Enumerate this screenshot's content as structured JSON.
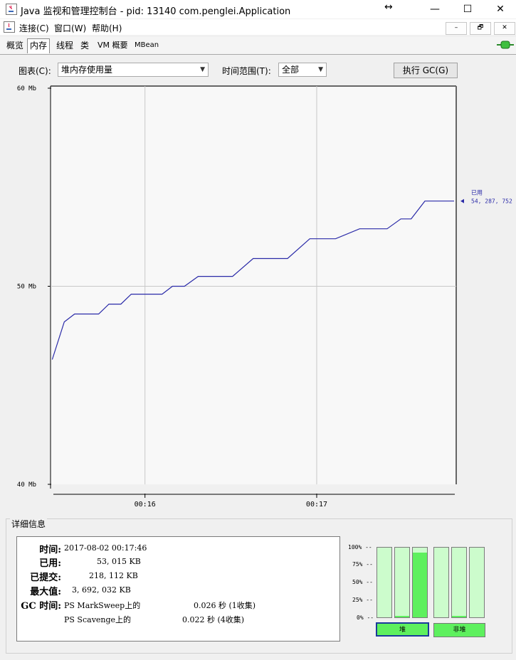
{
  "window": {
    "title": "Java 监视和管理控制台 - pid: 13140 com.penglei.Application",
    "minimize": "—",
    "maximize": "☐",
    "close": "✕",
    "resize_hint": "↔"
  },
  "menu": {
    "items": [
      "连接(C)",
      "窗口(W)",
      "帮助(H)"
    ],
    "mdi": [
      "–",
      "🗗",
      "✕"
    ]
  },
  "tabs": [
    "概览",
    "内存",
    "线程",
    "类",
    "VM 概要",
    "MBean"
  ],
  "active_tab": "内存",
  "controls": {
    "chart_label": "图表(C):",
    "chart_value": "堆内存使用量",
    "range_label": "时间范围(T):",
    "range_value": "全部",
    "gc_button": "执行 GC(G)"
  },
  "chart_data": {
    "type": "line",
    "ylabel": "",
    "xlabel": "",
    "y_ticks": [
      "60 Mb",
      "50 Mb",
      "40 Mb"
    ],
    "ylim": [
      40,
      60
    ],
    "x_ticks": [
      "00:16",
      "00:17"
    ],
    "x_tick_minutes": [
      16,
      17
    ],
    "xlim_minutes": [
      15.45,
      17.8
    ],
    "series": [
      {
        "name": "已用",
        "x_minutes": [
          15.46,
          15.53,
          15.59,
          15.73,
          15.79,
          15.86,
          15.92,
          16.1,
          16.16,
          16.23,
          16.31,
          16.51,
          16.63,
          16.83,
          16.96,
          17.11,
          17.25,
          17.41,
          17.49,
          17.55,
          17.63,
          17.8
        ],
        "values": [
          46.3,
          48.2,
          48.6,
          48.6,
          49.1,
          49.1,
          49.6,
          49.6,
          50.0,
          50.0,
          50.5,
          50.5,
          51.4,
          51.4,
          52.4,
          52.4,
          52.9,
          52.9,
          53.4,
          53.4,
          54.3,
          54.3
        ]
      }
    ],
    "current_label": "已用",
    "current_value": "54, 287, 752",
    "grid": true
  },
  "details": {
    "title": "详细信息",
    "rows": [
      {
        "label": "时间:",
        "value": "2017-08-02 00:17:46"
      },
      {
        "label": "已用:",
        "value": "53, 015 KB"
      },
      {
        "label": "已提交:",
        "value": "218, 112 KB"
      },
      {
        "label": "最大值:",
        "value": "3, 692, 032 KB"
      },
      {
        "label": "GC 时间:",
        "value": "PS MarkSweep上的",
        "value2": "0.026 秒 (1收集)"
      }
    ],
    "gc_row2": {
      "value": "PS Scavenge上的",
      "value2": "0.022 秒 (4收集)"
    },
    "percent_ticks": [
      "100% --",
      "75% --",
      "50% --",
      "25% --",
      "0% --"
    ],
    "heap_pools": [
      0.0,
      0.02,
      0.93
    ],
    "nonheap_pools": [
      0.0,
      0.02,
      0.0
    ],
    "heap_label": "堆",
    "nonheap_label": "非堆"
  }
}
